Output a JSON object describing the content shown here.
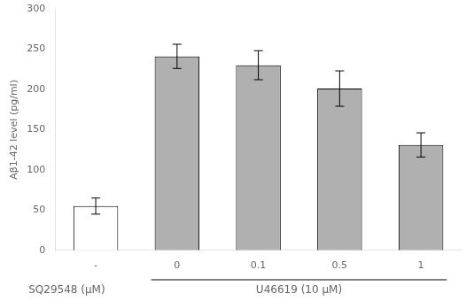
{
  "chart_data": {
    "type": "bar",
    "categories": [
      "-",
      "0",
      "0.1",
      "0.5",
      "1"
    ],
    "values": [
      55,
      241,
      230,
      201,
      131
    ],
    "errors": [
      10,
      15,
      18,
      22,
      15
    ],
    "colors": [
      "#ffffff",
      "#b0b0b0",
      "#b0b0b0",
      "#b0b0b0",
      "#b0b0b0"
    ],
    "edge_color": "#000000",
    "ylabel": "Aβ1-42 level (pg/ml)",
    "ylim": [
      0,
      300
    ],
    "yticks": [
      0,
      50,
      100,
      150,
      200,
      250,
      300
    ],
    "grid": false,
    "annotations": [
      {
        "text": "SQ29548 (μM)"
      },
      {
        "text": "U46619 (10 μM)",
        "span": [
          "0",
          "1"
        ]
      }
    ]
  }
}
